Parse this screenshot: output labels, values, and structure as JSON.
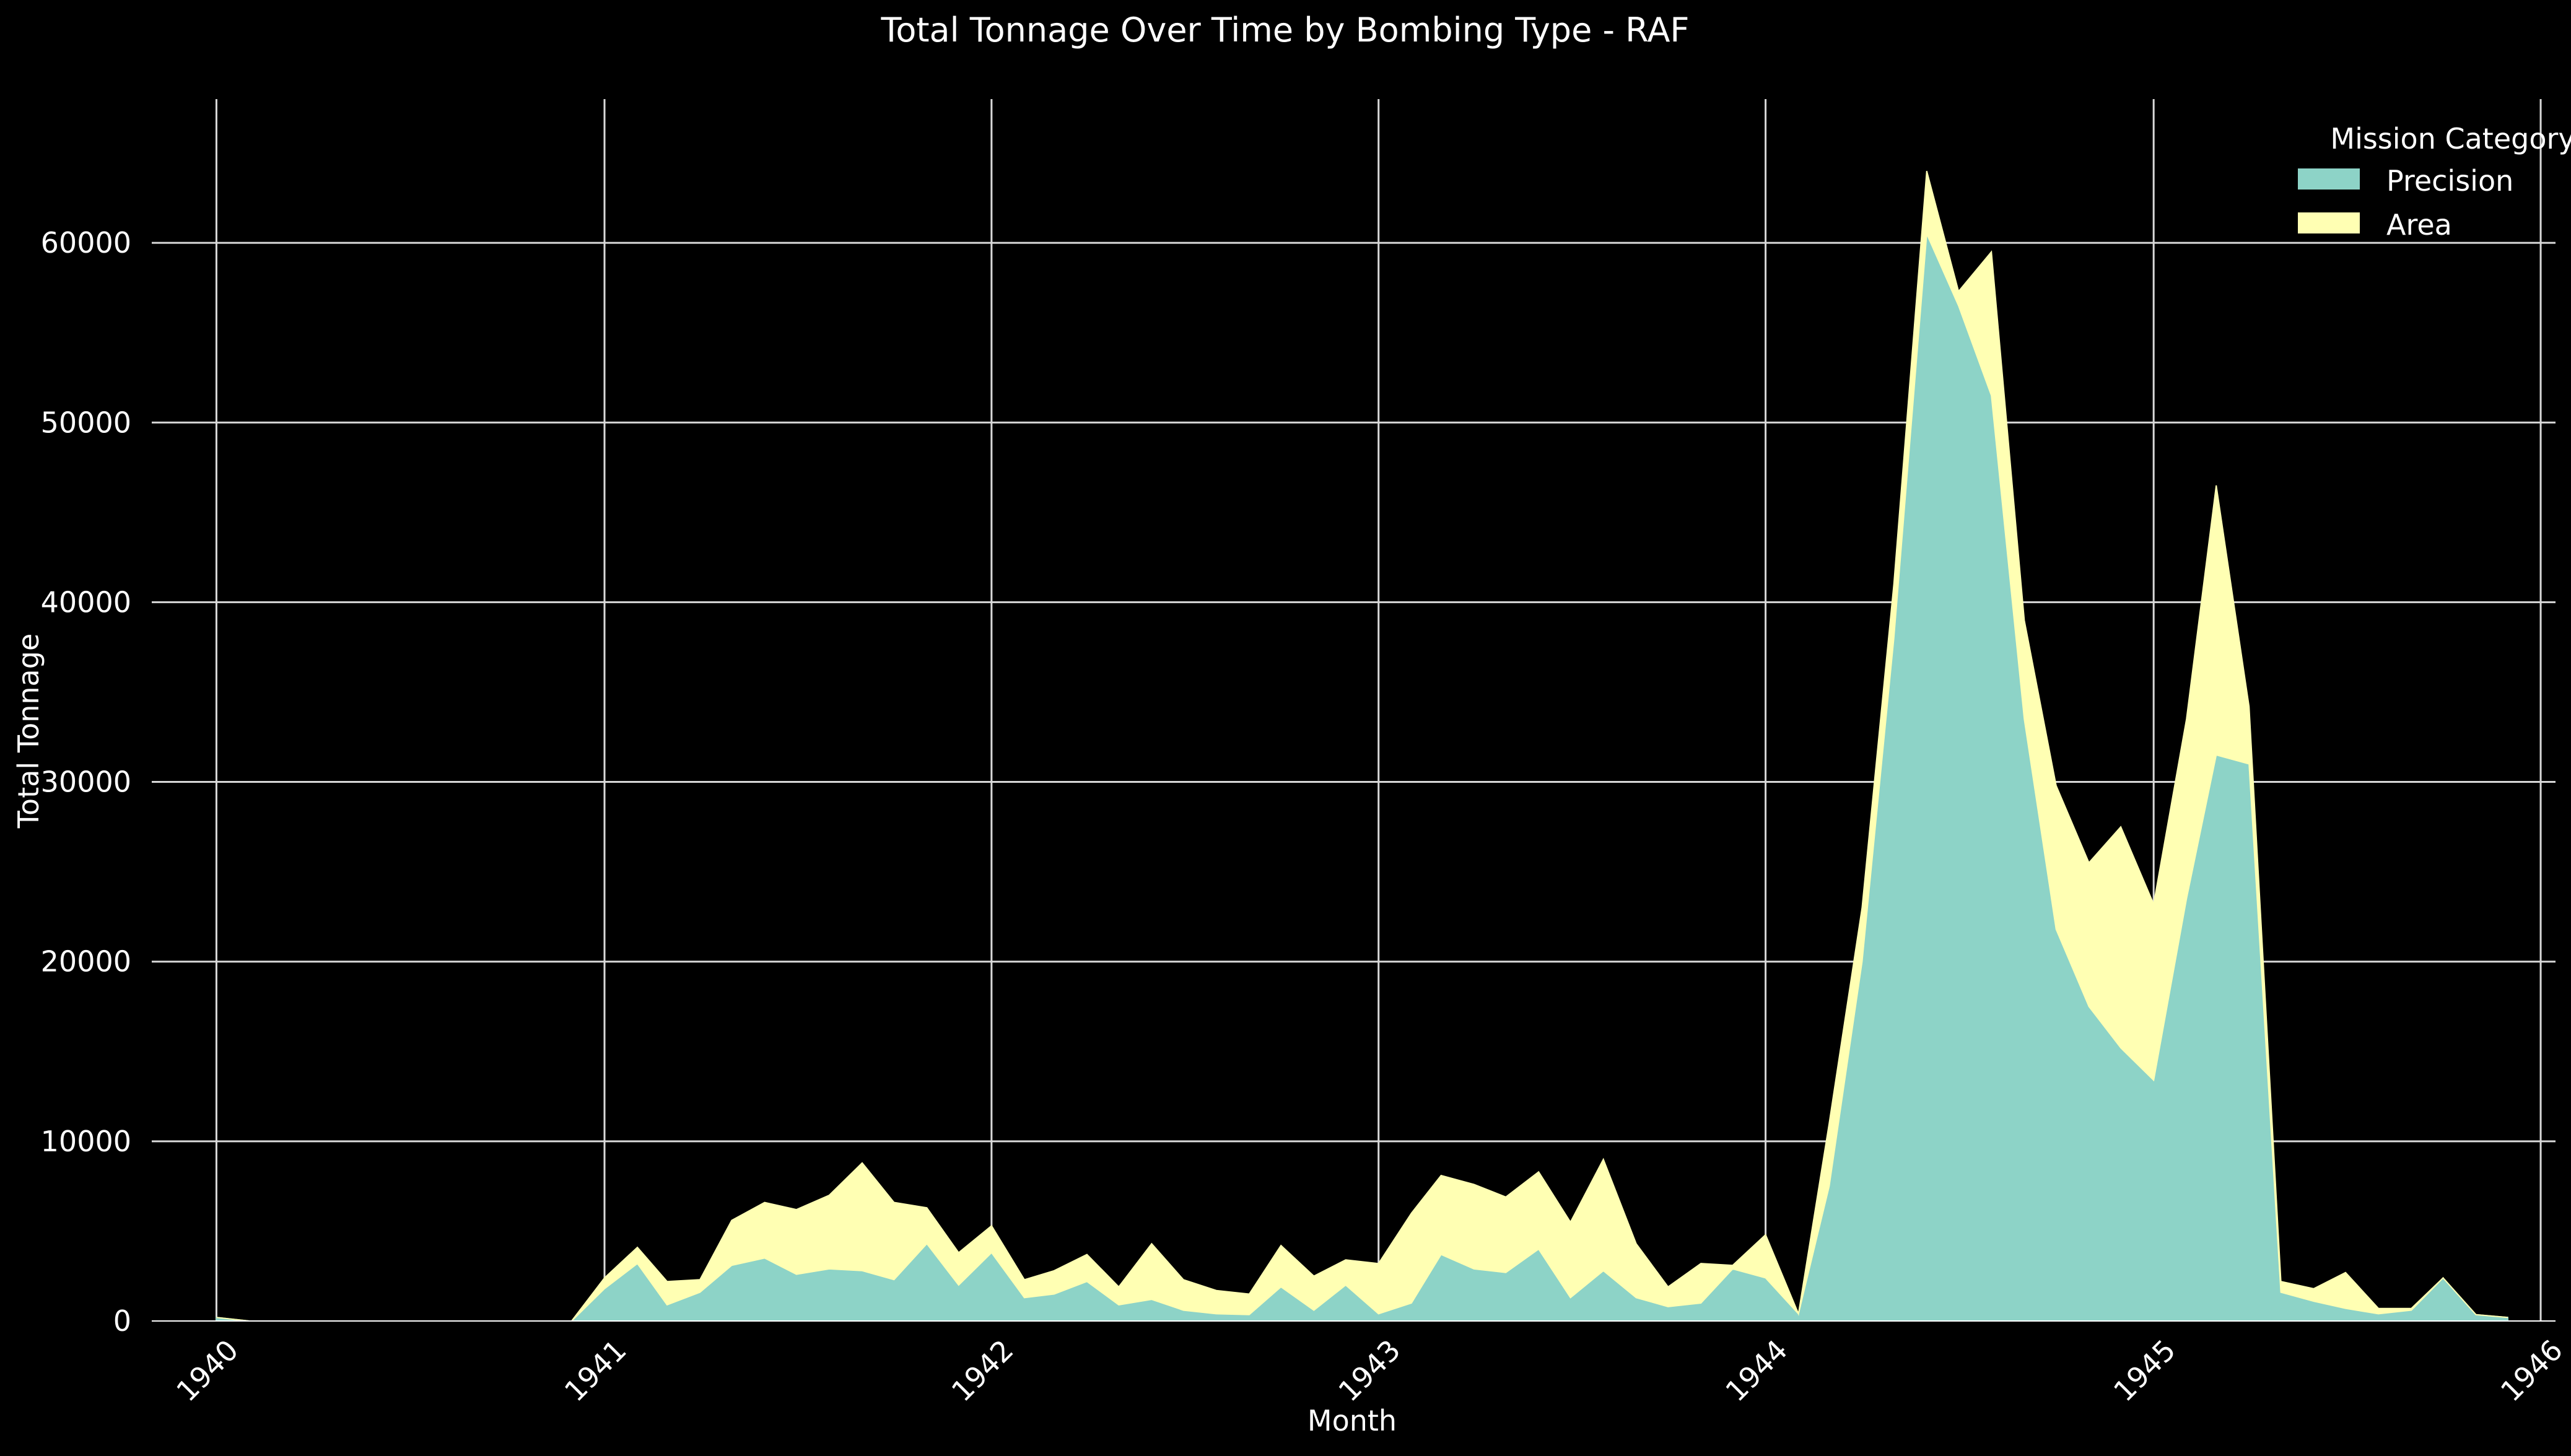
{
  "colors": {
    "background": "#000000",
    "text": "#ffffff",
    "grid": "#d9d9d9",
    "precision": "#8dd3c7",
    "area": "#ffffb3"
  },
  "chart_data": {
    "type": "area",
    "stacked": true,
    "title": "Total Tonnage Over Time by Bombing Type - RAF",
    "xlabel": "Month",
    "ylabel": "Total Tonnage",
    "xlim": [
      "1939-11-01",
      "1946-01-15"
    ],
    "ylim": [
      0,
      68000
    ],
    "yticks": [
      0,
      10000,
      20000,
      30000,
      40000,
      50000,
      60000
    ],
    "xticks": [
      {
        "date": "1940-01-01",
        "label": "1940"
      },
      {
        "date": "1941-01-01",
        "label": "1941"
      },
      {
        "date": "1942-01-01",
        "label": "1942"
      },
      {
        "date": "1943-01-01",
        "label": "1943"
      },
      {
        "date": "1944-01-01",
        "label": "1944"
      },
      {
        "date": "1945-01-01",
        "label": "1945"
      },
      {
        "date": "1946-01-01",
        "label": "1946"
      }
    ],
    "grid": true,
    "legend": {
      "title": "Mission Category",
      "position": "top-right"
    },
    "series": [
      {
        "name": "Precision",
        "color": "#8dd3c7",
        "points": [
          [
            "1940-01-01",
            200
          ],
          [
            "1940-02-01",
            0
          ],
          [
            "1940-12-01",
            0
          ],
          [
            "1941-01-01",
            1800
          ],
          [
            "1941-02-01",
            3200
          ],
          [
            "1941-03-01",
            900
          ],
          [
            "1941-04-01",
            1600
          ],
          [
            "1941-05-01",
            3100
          ],
          [
            "1941-06-01",
            3500
          ],
          [
            "1941-07-01",
            2600
          ],
          [
            "1941-08-01",
            2900
          ],
          [
            "1941-09-01",
            2800
          ],
          [
            "1941-10-01",
            2300
          ],
          [
            "1941-11-01",
            4300
          ],
          [
            "1941-12-01",
            2000
          ],
          [
            "1942-01-01",
            3800
          ],
          [
            "1942-02-01",
            1300
          ],
          [
            "1942-03-01",
            1500
          ],
          [
            "1942-04-01",
            2200
          ],
          [
            "1942-05-01",
            900
          ],
          [
            "1942-06-01",
            1200
          ],
          [
            "1942-07-01",
            600
          ],
          [
            "1942-08-01",
            400
          ],
          [
            "1942-09-01",
            350
          ],
          [
            "1942-10-01",
            1900
          ],
          [
            "1942-11-01",
            600
          ],
          [
            "1942-12-01",
            2000
          ],
          [
            "1943-01-01",
            400
          ],
          [
            "1943-02-01",
            1000
          ],
          [
            "1943-03-01",
            3700
          ],
          [
            "1943-04-01",
            2900
          ],
          [
            "1943-05-01",
            2700
          ],
          [
            "1943-06-01",
            4000
          ],
          [
            "1943-07-01",
            1300
          ],
          [
            "1943-08-01",
            2800
          ],
          [
            "1943-09-01",
            1300
          ],
          [
            "1943-10-01",
            800
          ],
          [
            "1943-11-01",
            1000
          ],
          [
            "1943-12-01",
            2900
          ],
          [
            "1944-01-01",
            2400
          ],
          [
            "1944-02-01",
            400
          ],
          [
            "1944-03-01",
            7500
          ],
          [
            "1944-04-01",
            20000
          ],
          [
            "1944-05-01",
            38000
          ],
          [
            "1944-06-01",
            60500
          ],
          [
            "1944-07-01",
            56500
          ],
          [
            "1944-08-01",
            51500
          ],
          [
            "1944-09-01",
            33500
          ],
          [
            "1944-10-01",
            21800
          ],
          [
            "1944-11-01",
            17500
          ],
          [
            "1944-12-01",
            15200
          ],
          [
            "1945-01-01",
            13400
          ],
          [
            "1945-02-01",
            23500
          ],
          [
            "1945-03-01",
            31500
          ],
          [
            "1945-04-01",
            31000
          ],
          [
            "1945-05-01",
            1600
          ],
          [
            "1945-06-01",
            1100
          ],
          [
            "1945-07-01",
            700
          ],
          [
            "1945-08-01",
            400
          ],
          [
            "1945-09-01",
            600
          ],
          [
            "1945-10-01",
            2400
          ],
          [
            "1945-11-01",
            350
          ],
          [
            "1945-12-01",
            200
          ]
        ]
      },
      {
        "name": "Area",
        "color": "#ffffb3",
        "points": [
          [
            "1940-01-01",
            0
          ],
          [
            "1940-02-01",
            0
          ],
          [
            "1940-12-01",
            0
          ],
          [
            "1941-01-01",
            600
          ],
          [
            "1941-02-01",
            900
          ],
          [
            "1941-03-01",
            1300
          ],
          [
            "1941-04-01",
            700
          ],
          [
            "1941-05-01",
            2500
          ],
          [
            "1941-06-01",
            3100
          ],
          [
            "1941-07-01",
            3600
          ],
          [
            "1941-08-01",
            4100
          ],
          [
            "1941-09-01",
            6000
          ],
          [
            "1941-10-01",
            4300
          ],
          [
            "1941-11-01",
            2000
          ],
          [
            "1941-12-01",
            1800
          ],
          [
            "1942-01-01",
            1500
          ],
          [
            "1942-02-01",
            1000
          ],
          [
            "1942-03-01",
            1300
          ],
          [
            "1942-04-01",
            1500
          ],
          [
            "1942-05-01",
            1000
          ],
          [
            "1942-06-01",
            3100
          ],
          [
            "1942-07-01",
            1700
          ],
          [
            "1942-08-01",
            1300
          ],
          [
            "1942-09-01",
            1150
          ],
          [
            "1942-10-01",
            2300
          ],
          [
            "1942-11-01",
            1900
          ],
          [
            "1942-12-01",
            1400
          ],
          [
            "1943-01-01",
            2800
          ],
          [
            "1943-02-01",
            5000
          ],
          [
            "1943-03-01",
            4400
          ],
          [
            "1943-04-01",
            4700
          ],
          [
            "1943-05-01",
            4200
          ],
          [
            "1943-06-01",
            4300
          ],
          [
            "1943-07-01",
            4200
          ],
          [
            "1943-08-01",
            6200
          ],
          [
            "1943-09-01",
            3000
          ],
          [
            "1943-10-01",
            1100
          ],
          [
            "1943-11-01",
            2200
          ],
          [
            "1943-12-01",
            200
          ],
          [
            "1944-01-01",
            2400
          ],
          [
            "1944-02-01",
            0
          ],
          [
            "1944-03-01",
            3500
          ],
          [
            "1944-04-01",
            3000
          ],
          [
            "1944-05-01",
            3000
          ],
          [
            "1944-06-01",
            3500
          ],
          [
            "1944-07-01",
            800
          ],
          [
            "1944-08-01",
            8000
          ],
          [
            "1944-09-01",
            5500
          ],
          [
            "1944-10-01",
            8000
          ],
          [
            "1944-11-01",
            8000
          ],
          [
            "1944-12-01",
            12300
          ],
          [
            "1945-01-01",
            9800
          ],
          [
            "1945-02-01",
            10000
          ],
          [
            "1945-03-01",
            15000
          ],
          [
            "1945-04-01",
            3200
          ],
          [
            "1945-05-01",
            600
          ],
          [
            "1945-06-01",
            700
          ],
          [
            "1945-07-01",
            2000
          ],
          [
            "1945-08-01",
            300
          ],
          [
            "1945-09-01",
            100
          ],
          [
            "1945-10-01",
            0
          ],
          [
            "1945-11-01",
            0
          ],
          [
            "1945-12-01",
            0
          ]
        ]
      }
    ]
  }
}
